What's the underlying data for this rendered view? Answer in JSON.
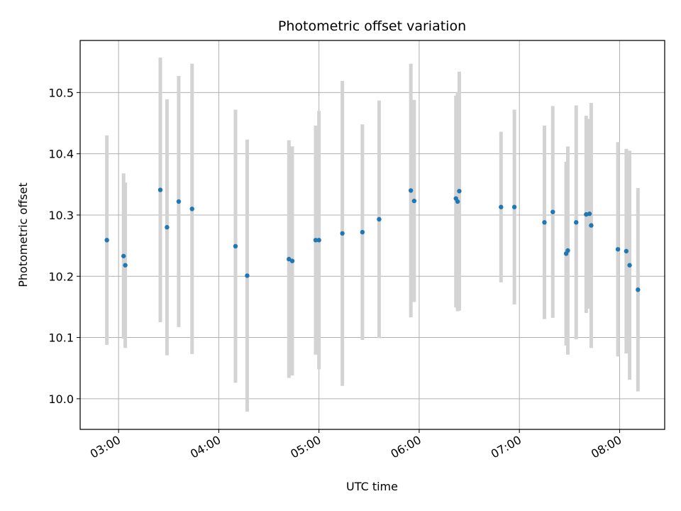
{
  "chart_data": {
    "type": "scatter",
    "title": "Photometric offset variation",
    "xlabel": "UTC time",
    "ylabel": "Photometric offset",
    "x_unit": "UTC time (HH:MM)",
    "xlim": [
      "02:37",
      "08:27"
    ],
    "ylim": [
      9.95,
      10.585
    ],
    "x_ticks": [
      "03:00",
      "04:00",
      "05:00",
      "06:00",
      "07:00",
      "08:00"
    ],
    "y_ticks": [
      "10.0",
      "10.1",
      "10.2",
      "10.3",
      "10.4",
      "10.5"
    ],
    "grid": true,
    "marker_color": "#1f77b4",
    "errorbar_color": "#d3d3d3",
    "points": [
      {
        "x": "02:53",
        "y": 10.259,
        "ylow": 10.088,
        "yhigh": 10.43
      },
      {
        "x": "03:03",
        "y": 10.233,
        "ylow": 10.098,
        "yhigh": 10.368
      },
      {
        "x": "03:04",
        "y": 10.218,
        "ylow": 10.083,
        "yhigh": 10.353
      },
      {
        "x": "03:25",
        "y": 10.341,
        "ylow": 10.125,
        "yhigh": 10.557
      },
      {
        "x": "03:29",
        "y": 10.28,
        "ylow": 10.071,
        "yhigh": 10.489
      },
      {
        "x": "03:36",
        "y": 10.322,
        "ylow": 10.117,
        "yhigh": 10.527
      },
      {
        "x": "03:44",
        "y": 10.31,
        "ylow": 10.073,
        "yhigh": 10.547
      },
      {
        "x": "04:10",
        "y": 10.249,
        "ylow": 10.026,
        "yhigh": 10.472
      },
      {
        "x": "04:17",
        "y": 10.201,
        "ylow": 9.979,
        "yhigh": 10.423
      },
      {
        "x": "04:42",
        "y": 10.228,
        "ylow": 10.034,
        "yhigh": 10.422
      },
      {
        "x": "04:44",
        "y": 10.225,
        "ylow": 10.038,
        "yhigh": 10.412
      },
      {
        "x": "04:58",
        "y": 10.259,
        "ylow": 10.072,
        "yhigh": 10.446
      },
      {
        "x": "05:00",
        "y": 10.259,
        "ylow": 10.048,
        "yhigh": 10.47
      },
      {
        "x": "05:14",
        "y": 10.27,
        "ylow": 10.021,
        "yhigh": 10.519
      },
      {
        "x": "05:26",
        "y": 10.272,
        "ylow": 10.096,
        "yhigh": 10.448
      },
      {
        "x": "05:36",
        "y": 10.293,
        "ylow": 10.099,
        "yhigh": 10.487
      },
      {
        "x": "05:55",
        "y": 10.34,
        "ylow": 10.133,
        "yhigh": 10.547
      },
      {
        "x": "05:57",
        "y": 10.323,
        "ylow": 10.158,
        "yhigh": 10.488
      },
      {
        "x": "06:22",
        "y": 10.327,
        "ylow": 10.149,
        "yhigh": 10.495
      },
      {
        "x": "06:23",
        "y": 10.322,
        "ylow": 10.143,
        "yhigh": 10.501
      },
      {
        "x": "06:24",
        "y": 10.339,
        "ylow": 10.144,
        "yhigh": 10.534
      },
      {
        "x": "06:49",
        "y": 10.313,
        "ylow": 10.19,
        "yhigh": 10.436
      },
      {
        "x": "06:57",
        "y": 10.313,
        "ylow": 10.154,
        "yhigh": 10.472
      },
      {
        "x": "07:15",
        "y": 10.288,
        "ylow": 10.13,
        "yhigh": 10.446
      },
      {
        "x": "07:20",
        "y": 10.305,
        "ylow": 10.132,
        "yhigh": 10.478
      },
      {
        "x": "07:28",
        "y": 10.237,
        "ylow": 10.087,
        "yhigh": 10.387
      },
      {
        "x": "07:29",
        "y": 10.242,
        "ylow": 10.072,
        "yhigh": 10.412
      },
      {
        "x": "07:34",
        "y": 10.288,
        "ylow": 10.097,
        "yhigh": 10.479
      },
      {
        "x": "07:40",
        "y": 10.301,
        "ylow": 10.14,
        "yhigh": 10.462
      },
      {
        "x": "07:42",
        "y": 10.302,
        "ylow": 10.147,
        "yhigh": 10.457
      },
      {
        "x": "07:43",
        "y": 10.283,
        "ylow": 10.083,
        "yhigh": 10.483
      },
      {
        "x": "07:59",
        "y": 10.244,
        "ylow": 10.069,
        "yhigh": 10.419
      },
      {
        "x": "08:04",
        "y": 10.241,
        "ylow": 10.074,
        "yhigh": 10.408
      },
      {
        "x": "08:06",
        "y": 10.218,
        "ylow": 10.031,
        "yhigh": 10.405
      },
      {
        "x": "08:11",
        "y": 10.178,
        "ylow": 10.012,
        "yhigh": 10.344
      }
    ]
  }
}
